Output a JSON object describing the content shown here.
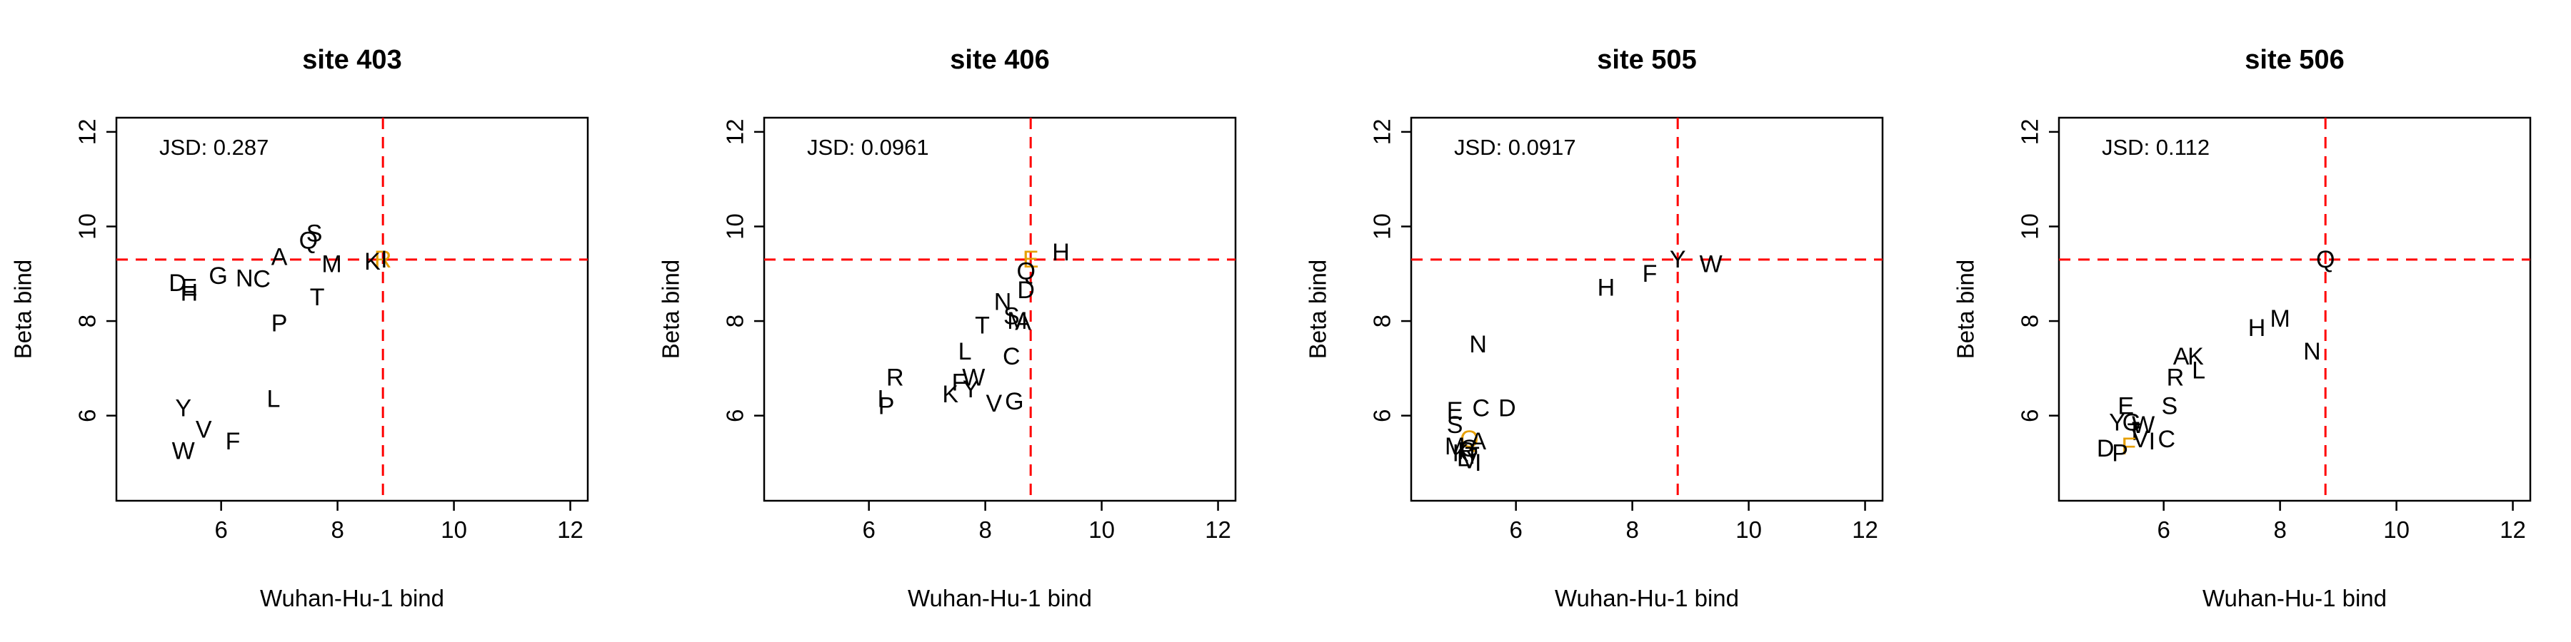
{
  "chart_data": [
    {
      "type": "scatter",
      "title": "site 403",
      "xlabel": "Wuhan-Hu-1 bind",
      "ylabel": "Beta bind",
      "xlim": [
        4.2,
        12.3
      ],
      "ylim": [
        4.2,
        12.3
      ],
      "xticks": [
        6,
        8,
        10,
        12
      ],
      "yticks": [
        6,
        8,
        10,
        12
      ],
      "annotation": "JSD: 0.287",
      "ref_x": 8.78,
      "ref_y": 9.3,
      "points": [
        {
          "label": "R",
          "x": 8.78,
          "y": 9.3,
          "color": "#e69f00"
        },
        {
          "label": "K",
          "x": 8.6,
          "y": 9.25
        },
        {
          "label": "I",
          "x": 8.8,
          "y": 9.3
        },
        {
          "label": "S",
          "x": 7.6,
          "y": 9.85
        },
        {
          "label": "Q",
          "x": 7.5,
          "y": 9.7
        },
        {
          "label": "A",
          "x": 7.0,
          "y": 9.35
        },
        {
          "label": "M",
          "x": 7.9,
          "y": 9.2
        },
        {
          "label": "G",
          "x": 5.95,
          "y": 8.95
        },
        {
          "label": "N",
          "x": 6.4,
          "y": 8.9
        },
        {
          "label": "C",
          "x": 6.7,
          "y": 8.88
        },
        {
          "label": "D",
          "x": 5.25,
          "y": 8.8
        },
        {
          "label": "E",
          "x": 5.45,
          "y": 8.7
        },
        {
          "label": "H",
          "x": 5.45,
          "y": 8.6
        },
        {
          "label": "T",
          "x": 7.65,
          "y": 8.5
        },
        {
          "label": "P",
          "x": 7.0,
          "y": 7.95
        },
        {
          "label": "L",
          "x": 6.9,
          "y": 6.35
        },
        {
          "label": "Y",
          "x": 5.35,
          "y": 6.15
        },
        {
          "label": "V",
          "x": 5.7,
          "y": 5.7
        },
        {
          "label": "F",
          "x": 6.2,
          "y": 5.45
        },
        {
          "label": "W",
          "x": 5.35,
          "y": 5.25
        }
      ]
    },
    {
      "type": "scatter",
      "title": "site 406",
      "xlabel": "Wuhan-Hu-1 bind",
      "ylabel": "Beta bind",
      "xlim": [
        4.2,
        12.3
      ],
      "ylim": [
        4.2,
        12.3
      ],
      "xticks": [
        6,
        8,
        10,
        12
      ],
      "yticks": [
        6,
        8,
        10,
        12
      ],
      "annotation": "JSD: 0.0961",
      "ref_x": 8.78,
      "ref_y": 9.3,
      "points": [
        {
          "label": "E",
          "x": 8.78,
          "y": 9.3,
          "color": "#e69f00"
        },
        {
          "label": "H",
          "x": 9.3,
          "y": 9.45
        },
        {
          "label": "Q",
          "x": 8.7,
          "y": 9.05
        },
        {
          "label": "D",
          "x": 8.7,
          "y": 8.65
        },
        {
          "label": "N",
          "x": 8.3,
          "y": 8.4
        },
        {
          "label": "S",
          "x": 8.45,
          "y": 8.1
        },
        {
          "label": "M",
          "x": 8.55,
          "y": 8.0
        },
        {
          "label": "A",
          "x": 8.65,
          "y": 7.98
        },
        {
          "label": "T",
          "x": 7.95,
          "y": 7.9
        },
        {
          "label": "L",
          "x": 7.65,
          "y": 7.35
        },
        {
          "label": "C",
          "x": 8.45,
          "y": 7.25
        },
        {
          "label": "R",
          "x": 6.45,
          "y": 6.8
        },
        {
          "label": "W",
          "x": 7.8,
          "y": 6.8
        },
        {
          "label": "F",
          "x": 7.55,
          "y": 6.7
        },
        {
          "label": "Y",
          "x": 7.75,
          "y": 6.55
        },
        {
          "label": "K",
          "x": 7.4,
          "y": 6.45
        },
        {
          "label": "I",
          "x": 6.2,
          "y": 6.35
        },
        {
          "label": "P",
          "x": 6.3,
          "y": 6.2
        },
        {
          "label": "V",
          "x": 8.15,
          "y": 6.25
        },
        {
          "label": "G",
          "x": 8.5,
          "y": 6.3
        }
      ]
    },
    {
      "type": "scatter",
      "title": "site 505",
      "xlabel": "Wuhan-Hu-1 bind",
      "ylabel": "Beta bind",
      "xlim": [
        4.2,
        12.3
      ],
      "ylim": [
        4.2,
        12.3
      ],
      "xticks": [
        6,
        8,
        10,
        12
      ],
      "yticks": [
        6,
        8,
        10,
        12
      ],
      "annotation": "JSD: 0.0917",
      "ref_x": 8.78,
      "ref_y": 9.3,
      "points": [
        {
          "label": "Y",
          "x": 8.78,
          "y": 9.3
        },
        {
          "label": "W",
          "x": 9.35,
          "y": 9.2
        },
        {
          "label": "F",
          "x": 8.3,
          "y": 9.0
        },
        {
          "label": "H",
          "x": 7.55,
          "y": 8.7
        },
        {
          "label": "N",
          "x": 5.35,
          "y": 7.5
        },
        {
          "label": "E",
          "x": 4.95,
          "y": 6.1
        },
        {
          "label": "C",
          "x": 5.4,
          "y": 6.15
        },
        {
          "label": "D",
          "x": 5.85,
          "y": 6.15
        },
        {
          "label": "S",
          "x": 4.95,
          "y": 5.8
        },
        {
          "label": "Q",
          "x": 5.2,
          "y": 5.5,
          "color": "#e69f00"
        },
        {
          "label": "A",
          "x": 5.35,
          "y": 5.45
        },
        {
          "label": "M",
          "x": 4.95,
          "y": 5.35
        },
        {
          "label": "G",
          "x": 5.2,
          "y": 5.3
        },
        {
          "label": "R",
          "x": 5.15,
          "y": 5.25
        },
        {
          "label": "K",
          "x": 5.05,
          "y": 5.2
        },
        {
          "label": "T",
          "x": 5.25,
          "y": 5.15
        },
        {
          "label": "L",
          "x": 5.1,
          "y": 5.1
        },
        {
          "label": "V",
          "x": 5.2,
          "y": 5.05
        },
        {
          "label": "I",
          "x": 5.35,
          "y": 5.0
        }
      ]
    },
    {
      "type": "scatter",
      "title": "site 506",
      "xlabel": "Wuhan-Hu-1 bind",
      "ylabel": "Beta bind",
      "xlim": [
        4.2,
        12.3
      ],
      "ylim": [
        4.2,
        12.3
      ],
      "xticks": [
        6,
        8,
        10,
        12
      ],
      "yticks": [
        6,
        8,
        10,
        12
      ],
      "annotation": "JSD: 0.112",
      "ref_x": 8.78,
      "ref_y": 9.3,
      "points": [
        {
          "label": "Q",
          "x": 8.78,
          "y": 9.3
        },
        {
          "label": "M",
          "x": 8.0,
          "y": 8.05
        },
        {
          "label": "H",
          "x": 7.6,
          "y": 7.85
        },
        {
          "label": "N",
          "x": 8.55,
          "y": 7.35
        },
        {
          "label": "A",
          "x": 6.3,
          "y": 7.25
        },
        {
          "label": "K",
          "x": 6.55,
          "y": 7.25
        },
        {
          "label": "L",
          "x": 6.6,
          "y": 6.95
        },
        {
          "label": "R",
          "x": 6.2,
          "y": 6.8
        },
        {
          "label": "E",
          "x": 5.35,
          "y": 6.2
        },
        {
          "label": "S",
          "x": 6.1,
          "y": 6.2
        },
        {
          "label": "Y",
          "x": 5.2,
          "y": 5.85
        },
        {
          "label": "G",
          "x": 5.45,
          "y": 5.85
        },
        {
          "label": "W",
          "x": 5.65,
          "y": 5.8
        },
        {
          "label": "T",
          "x": 5.5,
          "y": 5.65
        },
        {
          "label": "V",
          "x": 5.6,
          "y": 5.5
        },
        {
          "label": "I",
          "x": 5.8,
          "y": 5.45
        },
        {
          "label": "C",
          "x": 6.05,
          "y": 5.5
        },
        {
          "label": "F",
          "x": 5.4,
          "y": 5.35,
          "color": "#e69f00"
        },
        {
          "label": "D",
          "x": 5.0,
          "y": 5.3
        },
        {
          "label": "P",
          "x": 5.25,
          "y": 5.2
        }
      ]
    }
  ]
}
